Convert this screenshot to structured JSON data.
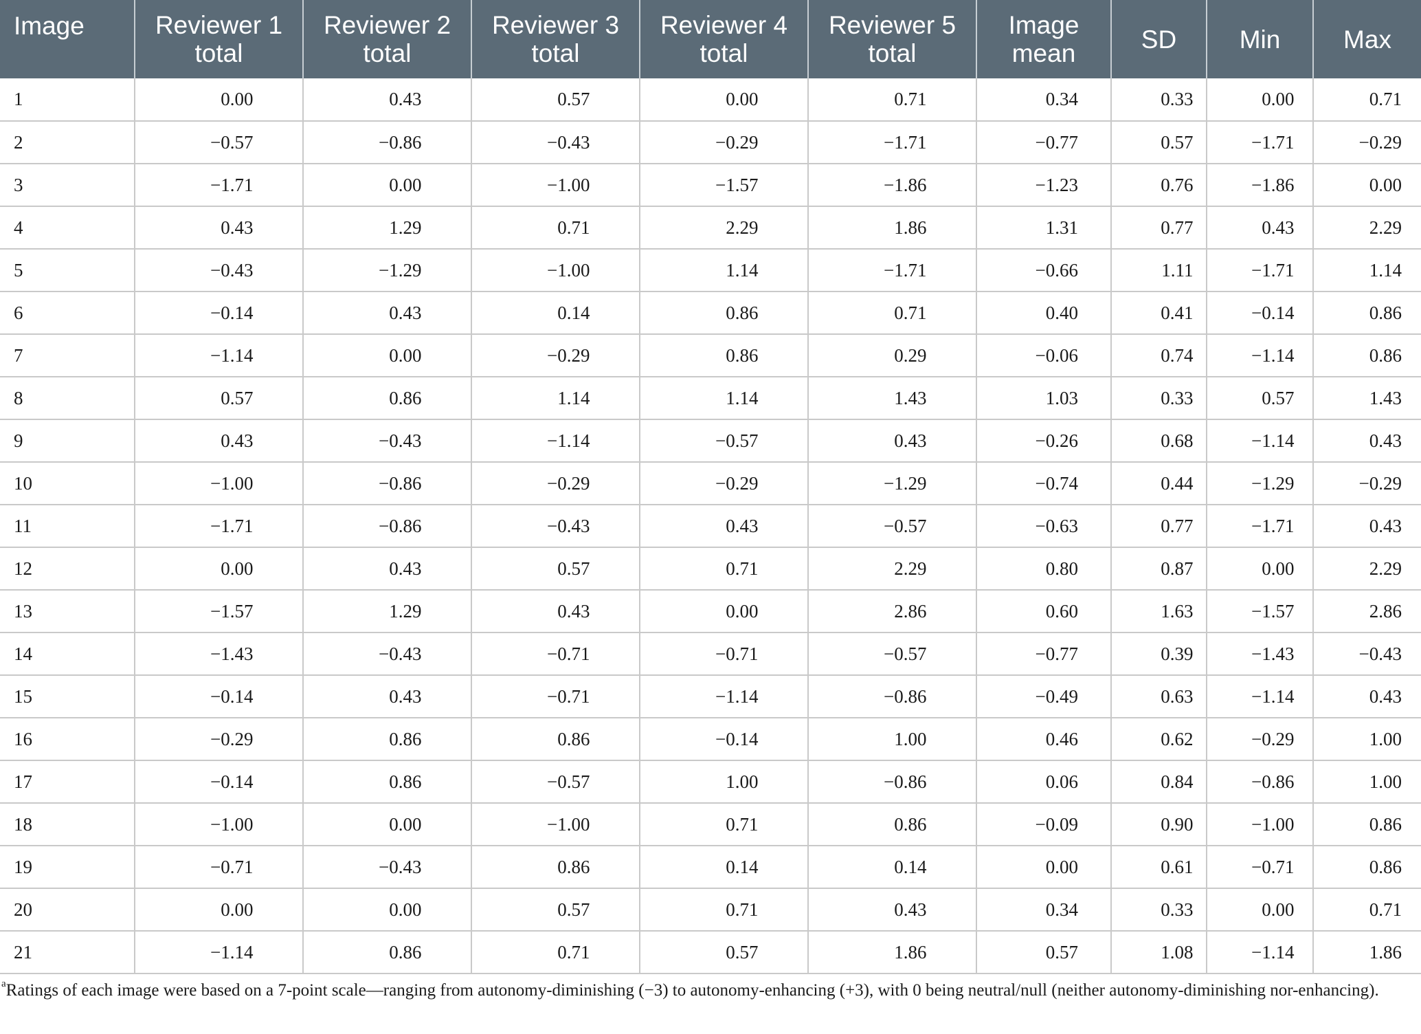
{
  "table": {
    "headers": [
      [
        "Image"
      ],
      [
        "Reviewer 1",
        "total"
      ],
      [
        "Reviewer 2",
        "total"
      ],
      [
        "Reviewer 3",
        "total"
      ],
      [
        "Reviewer 4",
        "total"
      ],
      [
        "Reviewer 5",
        "total"
      ],
      [
        "Image",
        "mean"
      ],
      [
        "SD"
      ],
      [
        "Min"
      ],
      [
        "Max"
      ]
    ],
    "rows": [
      [
        "1",
        "0.00",
        "0.43",
        "0.57",
        "0.00",
        "0.71",
        "0.34",
        "0.33",
        "0.00",
        "0.71"
      ],
      [
        "2",
        "−0.57",
        "−0.86",
        "−0.43",
        "−0.29",
        "−1.71",
        "−0.77",
        "0.57",
        "−1.71",
        "−0.29"
      ],
      [
        "3",
        "−1.71",
        "0.00",
        "−1.00",
        "−1.57",
        "−1.86",
        "−1.23",
        "0.76",
        "−1.86",
        "0.00"
      ],
      [
        "4",
        "0.43",
        "1.29",
        "0.71",
        "2.29",
        "1.86",
        "1.31",
        "0.77",
        "0.43",
        "2.29"
      ],
      [
        "5",
        "−0.43",
        "−1.29",
        "−1.00",
        "1.14",
        "−1.71",
        "−0.66",
        "1.11",
        "−1.71",
        "1.14"
      ],
      [
        "6",
        "−0.14",
        "0.43",
        "0.14",
        "0.86",
        "0.71",
        "0.40",
        "0.41",
        "−0.14",
        "0.86"
      ],
      [
        "7",
        "−1.14",
        "0.00",
        "−0.29",
        "0.86",
        "0.29",
        "−0.06",
        "0.74",
        "−1.14",
        "0.86"
      ],
      [
        "8",
        "0.57",
        "0.86",
        "1.14",
        "1.14",
        "1.43",
        "1.03",
        "0.33",
        "0.57",
        "1.43"
      ],
      [
        "9",
        "0.43",
        "−0.43",
        "−1.14",
        "−0.57",
        "0.43",
        "−0.26",
        "0.68",
        "−1.14",
        "0.43"
      ],
      [
        "10",
        "−1.00",
        "−0.86",
        "−0.29",
        "−0.29",
        "−1.29",
        "−0.74",
        "0.44",
        "−1.29",
        "−0.29"
      ],
      [
        "11",
        "−1.71",
        "−0.86",
        "−0.43",
        "0.43",
        "−0.57",
        "−0.63",
        "0.77",
        "−1.71",
        "0.43"
      ],
      [
        "12",
        "0.00",
        "0.43",
        "0.57",
        "0.71",
        "2.29",
        "0.80",
        "0.87",
        "0.00",
        "2.29"
      ],
      [
        "13",
        "−1.57",
        "1.29",
        "0.43",
        "0.00",
        "2.86",
        "0.60",
        "1.63",
        "−1.57",
        "2.86"
      ],
      [
        "14",
        "−1.43",
        "−0.43",
        "−0.71",
        "−0.71",
        "−0.57",
        "−0.77",
        "0.39",
        "−1.43",
        "−0.43"
      ],
      [
        "15",
        "−0.14",
        "0.43",
        "−0.71",
        "−1.14",
        "−0.86",
        "−0.49",
        "0.63",
        "−1.14",
        "0.43"
      ],
      [
        "16",
        "−0.29",
        "0.86",
        "0.86",
        "−0.14",
        "1.00",
        "0.46",
        "0.62",
        "−0.29",
        "1.00"
      ],
      [
        "17",
        "−0.14",
        "0.86",
        "−0.57",
        "1.00",
        "−0.86",
        "0.06",
        "0.84",
        "−0.86",
        "1.00"
      ],
      [
        "18",
        "−1.00",
        "0.00",
        "−1.00",
        "0.71",
        "0.86",
        "−0.09",
        "0.90",
        "−1.00",
        "0.86"
      ],
      [
        "19",
        "−0.71",
        "−0.43",
        "0.86",
        "0.14",
        "0.14",
        "0.00",
        "0.61",
        "−0.71",
        "0.86"
      ],
      [
        "20",
        "0.00",
        "0.00",
        "0.57",
        "0.71",
        "0.43",
        "0.34",
        "0.33",
        "0.00",
        "0.71"
      ],
      [
        "21",
        "−1.14",
        "0.86",
        "0.71",
        "0.57",
        "1.86",
        "0.57",
        "1.08",
        "−1.14",
        "1.86"
      ]
    ]
  },
  "footnote": {
    "marker": "a",
    "text": "Ratings of each image were based on a 7-point scale—ranging from autonomy-diminishing (−3) to autonomy-enhancing (+3), with 0 being neutral/null (neither autonomy-diminishing nor-enhancing)."
  }
}
